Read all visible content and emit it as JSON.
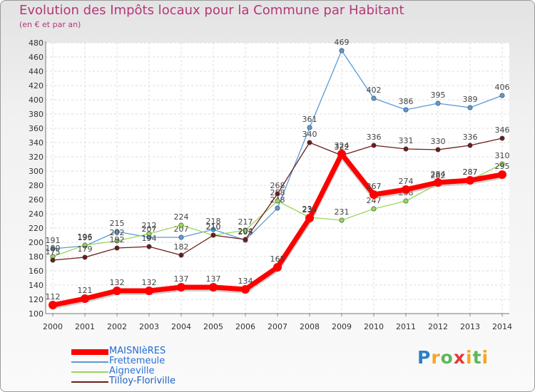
{
  "chart_data": {
    "type": "line",
    "title": "Evolution des Impôts locaux pour la Commune par Habitant",
    "subtitle": "(en € et par an)",
    "xlabel": "",
    "ylabel": "",
    "x": [
      2000,
      2001,
      2002,
      2003,
      2004,
      2005,
      2006,
      2007,
      2008,
      2009,
      2010,
      2011,
      2012,
      2013,
      2014
    ],
    "ylim": [
      100,
      480
    ],
    "yticks": [
      100,
      120,
      140,
      160,
      180,
      200,
      220,
      240,
      260,
      280,
      300,
      320,
      340,
      360,
      380,
      400,
      420,
      440,
      460,
      480
    ],
    "grid": true,
    "legend_position": "bottom-left",
    "series": [
      {
        "name": "MAISNIèRES",
        "color": "#ff0000",
        "values": [
          112,
          121,
          132,
          132,
          137,
          137,
          134,
          165,
          234,
          324,
          267,
          274,
          284,
          287,
          295
        ]
      },
      {
        "name": "Frettemeule",
        "color": "#5b9bd5",
        "values": [
          191,
          195,
          215,
          207,
          207,
          218,
          203,
          248,
          361,
          469,
          402,
          386,
          395,
          389,
          406
        ]
      },
      {
        "name": "Aigneville",
        "color": "#9ad65a",
        "values": [
          180,
          196,
          202,
          212,
          224,
          210,
          217,
          258,
          235,
          231,
          247,
          258,
          282,
          287,
          310
        ]
      },
      {
        "name": "Tilloy-Floriville",
        "color": "#6b1c1c",
        "values": [
          175,
          179,
          192,
          194,
          182,
          210,
          204,
          268,
          340,
          322,
          336,
          331,
          330,
          336,
          346
        ]
      }
    ]
  },
  "branding": {
    "letters": [
      "P",
      "r",
      "o",
      "x",
      "i",
      "t",
      "i"
    ],
    "colors": [
      "#2e7fc9",
      "#f5a623",
      "#5cb85c",
      "#e53935",
      "#f5a623",
      "#5cb85c",
      "#f5a623"
    ]
  }
}
